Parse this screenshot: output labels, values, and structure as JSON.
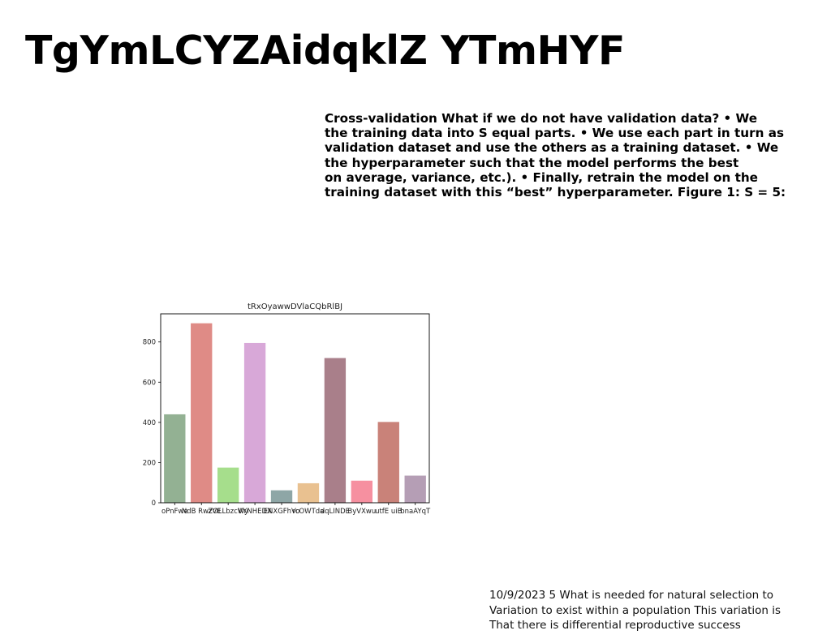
{
  "slide": {
    "title": "TgYmLCYZAidqklZ YTmHYF",
    "body_lines": [
      "Cross-validation What if we do not have validation data? • We",
      "the training data into S equal parts. • We use each part in turn as",
      "validation dataset and use the others as a training dataset. • We",
      "the hyperparameter such that the model performs the best",
      "on average, variance, etc.). • Finally, retrain the model on the",
      "training dataset with this “best” hyperparameter. Figure 1: S = 5:"
    ],
    "footer_lines": [
      "10/9/2023 5 What is needed for natural selection to",
      "Variation to exist within a population This variation is",
      "That there is differential reproductive success"
    ]
  },
  "chart_data": {
    "type": "bar",
    "title": "tRxOyawwDVlaCQbRlBJ",
    "xlabel": "",
    "ylabel": "",
    "categories": [
      "oPnFwe",
      "NdB RwzVE",
      "ZOLLbzcWy",
      "VYNHEDX",
      "ENXGFhVo",
      "rcOWTda",
      "dqLINDE",
      "ByVXwu",
      "utfE uiB",
      "bnaAYqT"
    ],
    "values": [
      440,
      893,
      175,
      795,
      62,
      97,
      720,
      110,
      402,
      135
    ],
    "colors": [
      "#93b193",
      "#df8b86",
      "#a6de8c",
      "#d8a8d8",
      "#8ea6a6",
      "#e9c190",
      "#a97f8a",
      "#f690a0",
      "#c98279",
      "#b59eb5"
    ],
    "yticks": [
      0,
      200,
      400,
      600,
      800
    ],
    "ylim": [
      0,
      940
    ],
    "grid": false
  }
}
